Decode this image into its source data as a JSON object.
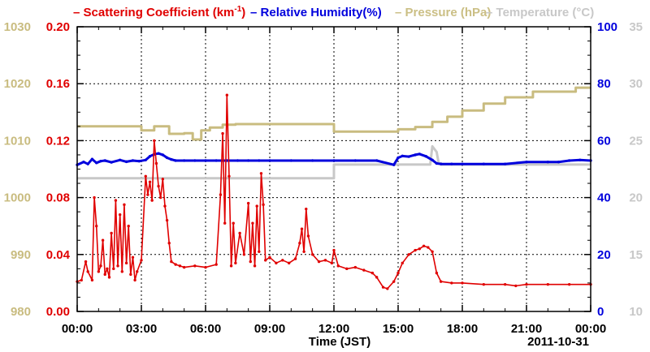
{
  "chart_data": {
    "type": "line",
    "xlabel": "Time (JST)",
    "date_label": "2011-10-31",
    "x_ticks": [
      "00:00",
      "03:00",
      "06:00",
      "09:00",
      "12:00",
      "15:00",
      "18:00",
      "21:00",
      "00:00"
    ],
    "x_range_hours": [
      0,
      24
    ],
    "grid": true,
    "legend": {
      "placement": "top",
      "items": [
        {
          "text": "Scattering Coefficient (km",
          "sup": "-1",
          "tail": ")",
          "color": "#e00000"
        },
        {
          "text": "Relative Humidity(%)",
          "color": "#0000dd"
        },
        {
          "text": "Pressure (hPa)",
          "color": "#cbbf85"
        },
        {
          "text": "Temperature (°C)",
          "color": "#c8c8c8"
        }
      ]
    },
    "axes": {
      "pressure": {
        "ylim": [
          980,
          1030
        ],
        "ticks": [
          "980",
          "990",
          "1000",
          "1010",
          "1020",
          "1030"
        ],
        "color": "#c9bc80"
      },
      "scattering": {
        "ylim": [
          0,
          0.2
        ],
        "ticks": [
          "0.00",
          "0.04",
          "0.08",
          "0.12",
          "0.16",
          "0.20"
        ],
        "color": "#e00000"
      },
      "humidity": {
        "ylim": [
          0,
          100
        ],
        "ticks": [
          "0",
          "20",
          "40",
          "60",
          "80",
          "100"
        ],
        "color": "#0000dd"
      },
      "temperature": {
        "ylim": [
          10,
          35
        ],
        "ticks": [
          "10",
          "15",
          "20",
          "25",
          "30",
          "35"
        ],
        "color": "#c8c8c8"
      }
    },
    "series": [
      {
        "name": "Scattering Coefficient",
        "axis": "scattering",
        "color": "#e00000",
        "x": [
          0,
          0.2,
          0.4,
          0.5,
          0.7,
          0.8,
          0.9,
          1.0,
          1.1,
          1.2,
          1.3,
          1.4,
          1.5,
          1.6,
          1.7,
          1.8,
          1.9,
          2.0,
          2.1,
          2.2,
          2.3,
          2.4,
          2.5,
          2.6,
          2.7,
          2.8,
          3.0,
          3.2,
          3.3,
          3.4,
          3.5,
          3.6,
          3.7,
          3.8,
          3.9,
          4.0,
          4.1,
          4.2,
          4.3,
          4.4,
          4.6,
          4.8,
          5.0,
          5.5,
          6.0,
          6.5,
          6.7,
          6.8,
          6.9,
          7.0,
          7.1,
          7.2,
          7.3,
          7.4,
          7.6,
          7.8,
          8.0,
          8.1,
          8.2,
          8.3,
          8.4,
          8.5,
          8.6,
          8.7,
          8.8,
          9.0,
          9.3,
          9.6,
          9.9,
          10.2,
          10.4,
          10.5,
          10.6,
          10.7,
          10.8,
          11.0,
          11.3,
          11.6,
          11.9,
          12.0,
          12.2,
          12.6,
          13.0,
          13.4,
          13.8,
          14.0,
          14.3,
          14.5,
          14.8,
          15.0,
          15.2,
          15.5,
          15.8,
          16.0,
          16.2,
          16.4,
          16.6,
          16.8,
          17.0,
          17.5,
          18.0,
          19.0,
          20.0,
          20.5,
          21.0,
          22.0,
          23.0,
          24.0
        ],
        "y": [
          0.021,
          0.022,
          0.035,
          0.028,
          0.022,
          0.08,
          0.06,
          0.028,
          0.032,
          0.05,
          0.026,
          0.03,
          0.024,
          0.055,
          0.03,
          0.078,
          0.032,
          0.068,
          0.028,
          0.075,
          0.034,
          0.06,
          0.026,
          0.038,
          0.022,
          0.028,
          0.036,
          0.095,
          0.082,
          0.091,
          0.078,
          0.12,
          0.104,
          0.088,
          0.08,
          0.093,
          0.074,
          0.064,
          0.048,
          0.035,
          0.033,
          0.032,
          0.031,
          0.032,
          0.031,
          0.033,
          0.082,
          0.125,
          0.062,
          0.152,
          0.095,
          0.032,
          0.062,
          0.034,
          0.055,
          0.04,
          0.076,
          0.035,
          0.062,
          0.032,
          0.074,
          0.042,
          0.097,
          0.075,
          0.036,
          0.038,
          0.034,
          0.036,
          0.034,
          0.037,
          0.048,
          0.058,
          0.042,
          0.072,
          0.053,
          0.04,
          0.035,
          0.036,
          0.034,
          0.043,
          0.032,
          0.03,
          0.031,
          0.029,
          0.027,
          0.024,
          0.017,
          0.016,
          0.021,
          0.027,
          0.034,
          0.04,
          0.043,
          0.044,
          0.046,
          0.045,
          0.042,
          0.027,
          0.021,
          0.02,
          0.02,
          0.019,
          0.019,
          0.018,
          0.019,
          0.019,
          0.019,
          0.019
        ]
      },
      {
        "name": "Relative Humidity",
        "axis": "humidity",
        "color": "#0000dd",
        "x": [
          0,
          0.3,
          0.5,
          0.7,
          0.9,
          1.1,
          1.3,
          1.6,
          2.0,
          2.3,
          2.6,
          2.9,
          3.2,
          3.4,
          3.6,
          3.8,
          4.0,
          4.2,
          4.4,
          4.6,
          5.0,
          5.5,
          6.0,
          6.5,
          7.0,
          7.5,
          8.0,
          8.5,
          9.0,
          10.0,
          11.0,
          12.0,
          13.0,
          14.0,
          14.8,
          15.0,
          15.2,
          15.5,
          15.8,
          16.0,
          16.3,
          16.6,
          16.8,
          17.0,
          17.5,
          18.0,
          19.0,
          20.0,
          21.0,
          22.0,
          22.5,
          23.0,
          23.5,
          24.0
        ],
        "y": [
          51.5,
          52.5,
          51.8,
          53.5,
          52.2,
          52.8,
          53.0,
          52.4,
          53.2,
          52.6,
          53.0,
          52.8,
          53.2,
          54.5,
          55.2,
          55.5,
          55.0,
          54.0,
          53.4,
          53.0,
          53.0,
          53.0,
          53.0,
          53.0,
          53.0,
          53.0,
          53.0,
          53.0,
          53.0,
          53.0,
          53.0,
          53.0,
          53.0,
          53.0,
          51.5,
          54.0,
          54.6,
          54.4,
          55.0,
          55.3,
          54.5,
          53.2,
          52.0,
          51.8,
          51.8,
          51.8,
          51.8,
          51.8,
          52.5,
          52.5,
          52.5,
          53.0,
          53.2,
          53.0
        ]
      },
      {
        "name": "Pressure",
        "axis": "pressure",
        "color": "#c9bc80",
        "x": [
          0,
          3.0,
          3.0,
          3.6,
          3.6,
          4.3,
          4.3,
          5.0,
          5.0,
          5.4,
          5.4,
          5.8,
          5.8,
          6.2,
          6.2,
          6.8,
          6.8,
          7.4,
          7.4,
          12.0,
          12.0,
          15.0,
          15.0,
          15.8,
          15.8,
          16.6,
          16.6,
          17.3,
          17.3,
          18.0,
          18.0,
          19.0,
          19.0,
          20.0,
          20.0,
          21.3,
          21.3,
          23.3,
          23.3,
          24.0
        ],
        "y": [
          1012.5,
          1012.5,
          1011.8,
          1011.8,
          1012.5,
          1012.5,
          1011.2,
          1011.2,
          1011.3,
          1011.3,
          1010.2,
          1010.2,
          1011.8,
          1011.8,
          1012.3,
          1012.3,
          1012.8,
          1012.8,
          1012.9,
          1012.9,
          1011.6,
          1011.6,
          1012.0,
          1012.0,
          1012.4,
          1012.4,
          1013.3,
          1013.3,
          1014.2,
          1014.2,
          1015.3,
          1015.3,
          1016.5,
          1016.5,
          1017.6,
          1017.6,
          1018.6,
          1018.6,
          1019.3,
          1019.3
        ]
      },
      {
        "name": "Temperature",
        "axis": "temperature",
        "color": "#c8c8c8",
        "x": [
          0,
          12.0,
          12.0,
          16.5,
          16.6,
          16.8,
          16.9,
          17.0,
          17.0,
          24.0
        ],
        "y": [
          21.7,
          21.7,
          22.9,
          22.9,
          24.5,
          24.0,
          23.0,
          23.0,
          22.9,
          22.9
        ]
      }
    ]
  }
}
